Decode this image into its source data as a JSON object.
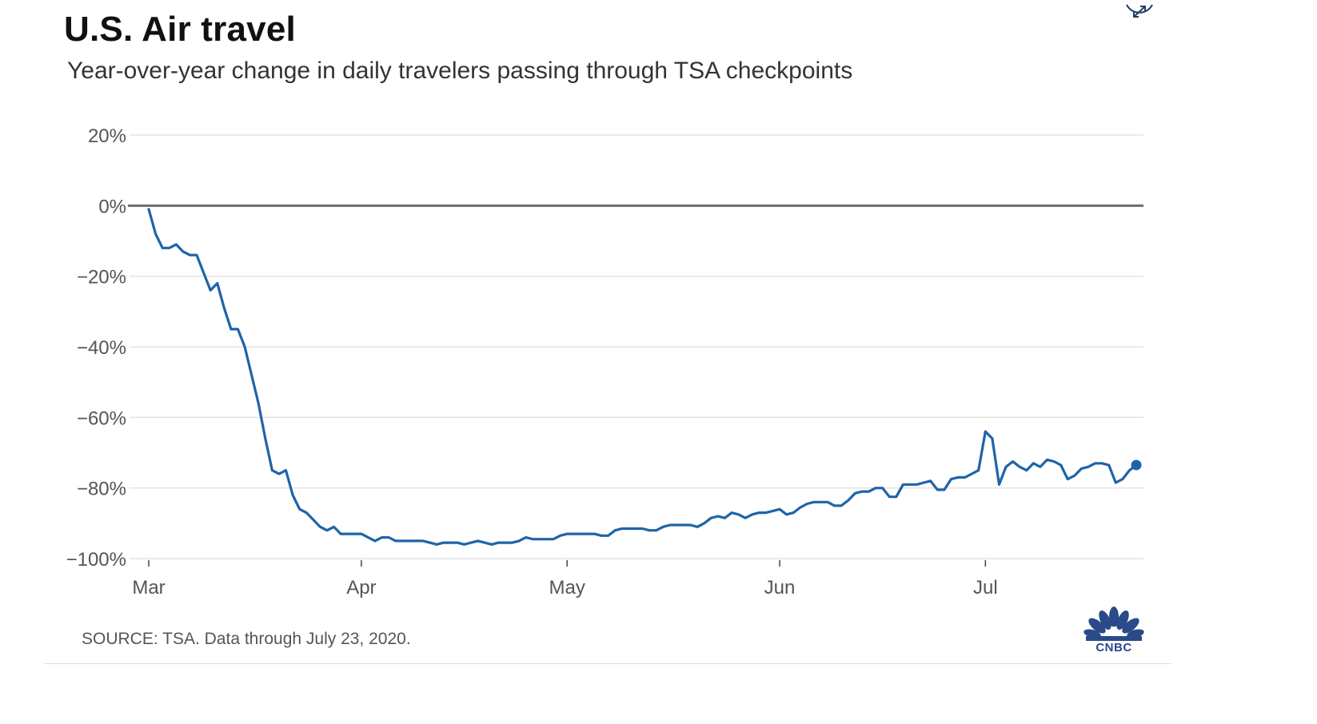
{
  "colors": {
    "line": "#1e64a8",
    "grid": "#e3e3e3",
    "zero_line": "#6d6d6d",
    "tick_text": "#555555",
    "logo": "#2a4a8a"
  },
  "icons": {
    "expand": "expand-arrows-icon",
    "logo": "cnbc-peacock-logo"
  },
  "source": "SOURCE: TSA. Data through July 23, 2020.",
  "logo_text": "CNBC",
  "chart_data": {
    "type": "line",
    "title": "U.S. Air travel",
    "subtitle": "Year-over-year change in daily travelers passing through TSA checkpoints",
    "xlabel": "",
    "ylabel": "",
    "unit": "%",
    "x_start": "2020-03-01",
    "x_end": "2020-07-23",
    "ylim": [
      -100,
      20
    ],
    "y_ticks": [
      20,
      0,
      -20,
      -40,
      -60,
      -80,
      -100
    ],
    "y_tick_labels": [
      "20%",
      "0%",
      "−20%",
      "−40%",
      "−60%",
      "−80%",
      "−100%"
    ],
    "x_ticks": [
      {
        "label": "Mar",
        "date": "2020-03-01"
      },
      {
        "label": "Apr",
        "date": "2020-04-01"
      },
      {
        "label": "May",
        "date": "2020-05-01"
      },
      {
        "label": "Jun",
        "date": "2020-06-01"
      },
      {
        "label": "Jul",
        "date": "2020-07-01"
      }
    ],
    "grid": true,
    "legend": "none",
    "series": [
      {
        "values": [
          [
            "2020-03-01",
            -1
          ],
          [
            "2020-03-02",
            -8
          ],
          [
            "2020-03-03",
            -12
          ],
          [
            "2020-03-04",
            -12
          ],
          [
            "2020-03-05",
            -11
          ],
          [
            "2020-03-06",
            -13
          ],
          [
            "2020-03-07",
            -14
          ],
          [
            "2020-03-08",
            -14
          ],
          [
            "2020-03-09",
            -19
          ],
          [
            "2020-03-10",
            -24
          ],
          [
            "2020-03-11",
            -22
          ],
          [
            "2020-03-12",
            -29
          ],
          [
            "2020-03-13",
            -35
          ],
          [
            "2020-03-14",
            -35
          ],
          [
            "2020-03-15",
            -40
          ],
          [
            "2020-03-16",
            -48
          ],
          [
            "2020-03-17",
            -56
          ],
          [
            "2020-03-18",
            -66
          ],
          [
            "2020-03-19",
            -75
          ],
          [
            "2020-03-20",
            -76
          ],
          [
            "2020-03-21",
            -75
          ],
          [
            "2020-03-22",
            -82
          ],
          [
            "2020-03-23",
            -86
          ],
          [
            "2020-03-24",
            -87
          ],
          [
            "2020-03-25",
            -89
          ],
          [
            "2020-03-26",
            -91
          ],
          [
            "2020-03-27",
            -92
          ],
          [
            "2020-03-28",
            -91
          ],
          [
            "2020-03-29",
            -93
          ],
          [
            "2020-03-30",
            -93
          ],
          [
            "2020-03-31",
            -93
          ],
          [
            "2020-04-01",
            -93
          ],
          [
            "2020-04-02",
            -94
          ],
          [
            "2020-04-03",
            -95
          ],
          [
            "2020-04-04",
            -94
          ],
          [
            "2020-04-05",
            -94
          ],
          [
            "2020-04-06",
            -95
          ],
          [
            "2020-04-07",
            -95
          ],
          [
            "2020-04-08",
            -95
          ],
          [
            "2020-04-09",
            -95
          ],
          [
            "2020-04-10",
            -95
          ],
          [
            "2020-04-11",
            -95.5
          ],
          [
            "2020-04-12",
            -96
          ],
          [
            "2020-04-13",
            -95.5
          ],
          [
            "2020-04-14",
            -95.5
          ],
          [
            "2020-04-15",
            -95.5
          ],
          [
            "2020-04-16",
            -96
          ],
          [
            "2020-04-17",
            -95.5
          ],
          [
            "2020-04-18",
            -95
          ],
          [
            "2020-04-19",
            -95.5
          ],
          [
            "2020-04-20",
            -96
          ],
          [
            "2020-04-21",
            -95.5
          ],
          [
            "2020-04-22",
            -95.5
          ],
          [
            "2020-04-23",
            -95.5
          ],
          [
            "2020-04-24",
            -95
          ],
          [
            "2020-04-25",
            -94
          ],
          [
            "2020-04-26",
            -94.5
          ],
          [
            "2020-04-27",
            -94.5
          ],
          [
            "2020-04-28",
            -94.5
          ],
          [
            "2020-04-29",
            -94.5
          ],
          [
            "2020-04-30",
            -93.5
          ],
          [
            "2020-05-01",
            -93
          ],
          [
            "2020-05-02",
            -93
          ],
          [
            "2020-05-03",
            -93
          ],
          [
            "2020-05-04",
            -93
          ],
          [
            "2020-05-05",
            -93
          ],
          [
            "2020-05-06",
            -93.5
          ],
          [
            "2020-05-07",
            -93.5
          ],
          [
            "2020-05-08",
            -92
          ],
          [
            "2020-05-09",
            -91.5
          ],
          [
            "2020-05-10",
            -91.5
          ],
          [
            "2020-05-11",
            -91.5
          ],
          [
            "2020-05-12",
            -91.5
          ],
          [
            "2020-05-13",
            -92
          ],
          [
            "2020-05-14",
            -92
          ],
          [
            "2020-05-15",
            -91
          ],
          [
            "2020-05-16",
            -90.5
          ],
          [
            "2020-05-17",
            -90.5
          ],
          [
            "2020-05-18",
            -90.5
          ],
          [
            "2020-05-19",
            -90.5
          ],
          [
            "2020-05-20",
            -91
          ],
          [
            "2020-05-21",
            -90
          ],
          [
            "2020-05-22",
            -88.5
          ],
          [
            "2020-05-23",
            -88
          ],
          [
            "2020-05-24",
            -88.5
          ],
          [
            "2020-05-25",
            -87
          ],
          [
            "2020-05-26",
            -87.5
          ],
          [
            "2020-05-27",
            -88.5
          ],
          [
            "2020-05-28",
            -87.5
          ],
          [
            "2020-05-29",
            -87
          ],
          [
            "2020-05-30",
            -87
          ],
          [
            "2020-05-31",
            -86.5
          ],
          [
            "2020-06-01",
            -86
          ],
          [
            "2020-06-02",
            -87.5
          ],
          [
            "2020-06-03",
            -87
          ],
          [
            "2020-06-04",
            -85.5
          ],
          [
            "2020-06-05",
            -84.5
          ],
          [
            "2020-06-06",
            -84
          ],
          [
            "2020-06-07",
            -84
          ],
          [
            "2020-06-08",
            -84
          ],
          [
            "2020-06-09",
            -85
          ],
          [
            "2020-06-10",
            -85
          ],
          [
            "2020-06-11",
            -83.5
          ],
          [
            "2020-06-12",
            -81.5
          ],
          [
            "2020-06-13",
            -81
          ],
          [
            "2020-06-14",
            -81
          ],
          [
            "2020-06-15",
            -80
          ],
          [
            "2020-06-16",
            -80
          ],
          [
            "2020-06-17",
            -82.5
          ],
          [
            "2020-06-18",
            -82.5
          ],
          [
            "2020-06-19",
            -79
          ],
          [
            "2020-06-20",
            -79
          ],
          [
            "2020-06-21",
            -79
          ],
          [
            "2020-06-22",
            -78.5
          ],
          [
            "2020-06-23",
            -78
          ],
          [
            "2020-06-24",
            -80.5
          ],
          [
            "2020-06-25",
            -80.5
          ],
          [
            "2020-06-26",
            -77.5
          ],
          [
            "2020-06-27",
            -77
          ],
          [
            "2020-06-28",
            -77
          ],
          [
            "2020-06-29",
            -76
          ],
          [
            "2020-06-30",
            -75
          ],
          [
            "2020-07-01",
            -64
          ],
          [
            "2020-07-02",
            -66
          ],
          [
            "2020-07-03",
            -79
          ],
          [
            "2020-07-04",
            -74
          ],
          [
            "2020-07-05",
            -72.5
          ],
          [
            "2020-07-06",
            -74
          ],
          [
            "2020-07-07",
            -75
          ],
          [
            "2020-07-08",
            -73
          ],
          [
            "2020-07-09",
            -74
          ],
          [
            "2020-07-10",
            -72
          ],
          [
            "2020-07-11",
            -72.5
          ],
          [
            "2020-07-12",
            -73.5
          ],
          [
            "2020-07-13",
            -77.5
          ],
          [
            "2020-07-14",
            -76.5
          ],
          [
            "2020-07-15",
            -74.5
          ],
          [
            "2020-07-16",
            -74
          ],
          [
            "2020-07-17",
            -73
          ],
          [
            "2020-07-18",
            -73
          ],
          [
            "2020-07-19",
            -73.5
          ],
          [
            "2020-07-20",
            -78.5
          ],
          [
            "2020-07-21",
            -77.5
          ],
          [
            "2020-07-22",
            -75
          ],
          [
            "2020-07-23",
            -73.5
          ]
        ]
      }
    ]
  }
}
